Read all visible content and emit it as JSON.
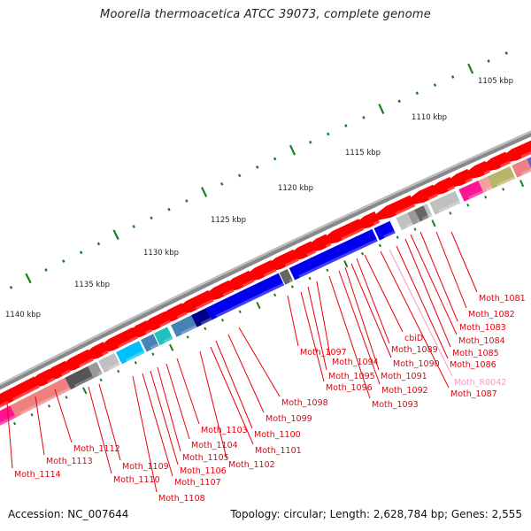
{
  "title": "Moorella thermoacetica ATCC 39073, complete genome",
  "footer": {
    "accession": "Accession: NC_007644",
    "summary": "Topology: circular; Length: 2,628,784 bp; Genes: 2,555"
  },
  "colors": {
    "backbone": "#888888",
    "forward_gene": "#ff0000",
    "tick": "#1a7f1a",
    "label": "#e8000b",
    "label_rna": "#f39ac8"
  },
  "scale_labels": [
    "1105 kbp",
    "1110 kbp",
    "1115 kbp",
    "1120 kbp",
    "1125 kbp",
    "1130 kbp",
    "1135 kbp",
    "1140 kbp"
  ],
  "gene_labels": [
    {
      "text": "Moth_1081",
      "rna": false
    },
    {
      "text": "Moth_1082",
      "rna": false
    },
    {
      "text": "Moth_1083",
      "rna": false
    },
    {
      "text": "Moth_1084",
      "rna": false
    },
    {
      "text": "Moth_1085",
      "rna": false
    },
    {
      "text": "Moth_1086",
      "rna": false
    },
    {
      "text": "Moth_R0042",
      "rna": true
    },
    {
      "text": "Moth_1087",
      "rna": false
    },
    {
      "text": "cbiD",
      "rna": false
    },
    {
      "text": "Moth_1089",
      "rna": false
    },
    {
      "text": "Moth_1090",
      "rna": false
    },
    {
      "text": "Moth_1091",
      "rna": false
    },
    {
      "text": "Moth_1092",
      "rna": false
    },
    {
      "text": "Moth_1093",
      "rna": false
    },
    {
      "text": "Moth_1094",
      "rna": false
    },
    {
      "text": "Moth_1095",
      "rna": false
    },
    {
      "text": "Moth_1096",
      "rna": false
    },
    {
      "text": "Moth_1097",
      "rna": false
    },
    {
      "text": "Moth_1098",
      "rna": false
    },
    {
      "text": "Moth_1099",
      "rna": false
    },
    {
      "text": "Moth_1100",
      "rna": false
    },
    {
      "text": "Moth_1101",
      "rna": false
    },
    {
      "text": "Moth_1102",
      "rna": false
    },
    {
      "text": "Moth_1103",
      "rna": false
    },
    {
      "text": "Moth_1104",
      "rna": false
    },
    {
      "text": "Moth_1105",
      "rna": false
    },
    {
      "text": "Moth_1106",
      "rna": false
    },
    {
      "text": "Moth_1107",
      "rna": false
    },
    {
      "text": "Moth_1108",
      "rna": false
    },
    {
      "text": "Moth_1109",
      "rna": false
    },
    {
      "text": "Moth_1110",
      "rna": false
    },
    {
      "text": "Moth_1112",
      "rna": false
    },
    {
      "text": "Moth_1113",
      "rna": false
    },
    {
      "text": "Moth_1114",
      "rna": false
    }
  ],
  "cog_blocks": [
    {
      "color": "#6a5acd"
    },
    {
      "color": "#f08080"
    },
    {
      "color": "#b8b46a"
    },
    {
      "color": "#f4a0a0"
    },
    {
      "color": "#ff1493"
    },
    {
      "color": "#c0c0c0"
    },
    {
      "color": "#c0c0c0"
    },
    {
      "color": "#666666"
    },
    {
      "color": "#999999"
    },
    {
      "color": "#c0c0c0"
    },
    {
      "color": "#0000ee"
    },
    {
      "color": "#0000ee"
    },
    {
      "color": "#666666"
    },
    {
      "color": "#0000ee"
    },
    {
      "color": "#000088"
    },
    {
      "color": "#4682b4"
    },
    {
      "color": "#20c0c0"
    },
    {
      "color": "#4682b4"
    },
    {
      "color": "#00bfff"
    },
    {
      "color": "#c0c0c0"
    },
    {
      "color": "#999999"
    },
    {
      "color": "#555555"
    },
    {
      "color": "#f08080"
    },
    {
      "color": "#ff1493"
    }
  ]
}
